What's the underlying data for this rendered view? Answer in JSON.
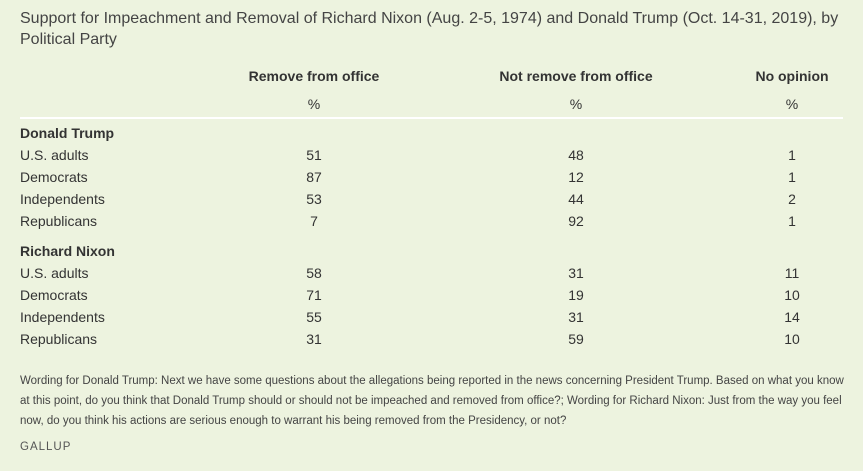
{
  "chart_data": {
    "type": "table",
    "title": "Support for Impeachment and Removal of Richard Nixon (Aug. 2-5, 1974) and Donald Trump (Oct. 14-31, 2019), by Political Party",
    "columns": [
      "Remove from office",
      "Not remove from office",
      "No opinion"
    ],
    "units": "%",
    "sections": [
      {
        "name": "Donald Trump",
        "rows": [
          {
            "label": "U.S. adults",
            "values": [
              51,
              48,
              1
            ]
          },
          {
            "label": "Democrats",
            "values": [
              87,
              12,
              1
            ]
          },
          {
            "label": "Independents",
            "values": [
              53,
              44,
              2
            ]
          },
          {
            "label": "Republicans",
            "values": [
              7,
              92,
              1
            ]
          }
        ]
      },
      {
        "name": "Richard Nixon",
        "rows": [
          {
            "label": "U.S. adults",
            "values": [
              58,
              31,
              11
            ]
          },
          {
            "label": "Democrats",
            "values": [
              71,
              19,
              10
            ]
          },
          {
            "label": "Independents",
            "values": [
              55,
              31,
              14
            ]
          },
          {
            "label": "Republicans",
            "values": [
              31,
              59,
              10
            ]
          }
        ]
      }
    ],
    "note": "Wording for Donald Trump: Next we have some questions about the allegations being reported in the news concerning President Trump. Based on what you know at this point, do you think that Donald Trump should or should not be impeached and removed from office?; Wording for Richard Nixon: Just from the way you feel now, do you think his actions are serious enough to warrant his being removed from the Presidency, or not?",
    "source": "GALLUP"
  }
}
